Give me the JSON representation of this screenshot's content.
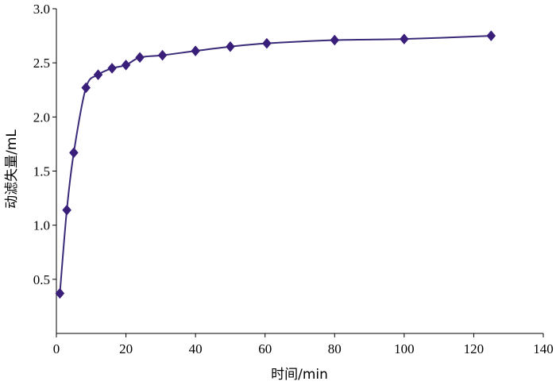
{
  "chart_data": {
    "type": "line",
    "xlabel": "时间/min",
    "ylabel": "动滤失量/mL",
    "xlim": [
      0,
      140
    ],
    "ylim": [
      0,
      3.0
    ],
    "xticks": [
      "0",
      "20",
      "40",
      "60",
      "80",
      "100",
      "120",
      "140"
    ],
    "yticks": [
      "0.5",
      "1.0",
      "1.5",
      "2.0",
      "2.5",
      "3.0"
    ],
    "grid": false,
    "legend": "none",
    "marker": "diamond",
    "line_color": "#3a2a78",
    "marker_color": "#3a1f7a",
    "series": [
      {
        "x": [
          1,
          3,
          5,
          8.5,
          12,
          16,
          20,
          24,
          30.5,
          40,
          50,
          60.5,
          80,
          100,
          125
        ],
        "y": [
          0.37,
          1.14,
          1.67,
          2.27,
          2.39,
          2.45,
          2.48,
          2.55,
          2.57,
          2.61,
          2.65,
          2.68,
          2.71,
          2.72,
          2.75
        ]
      }
    ]
  }
}
